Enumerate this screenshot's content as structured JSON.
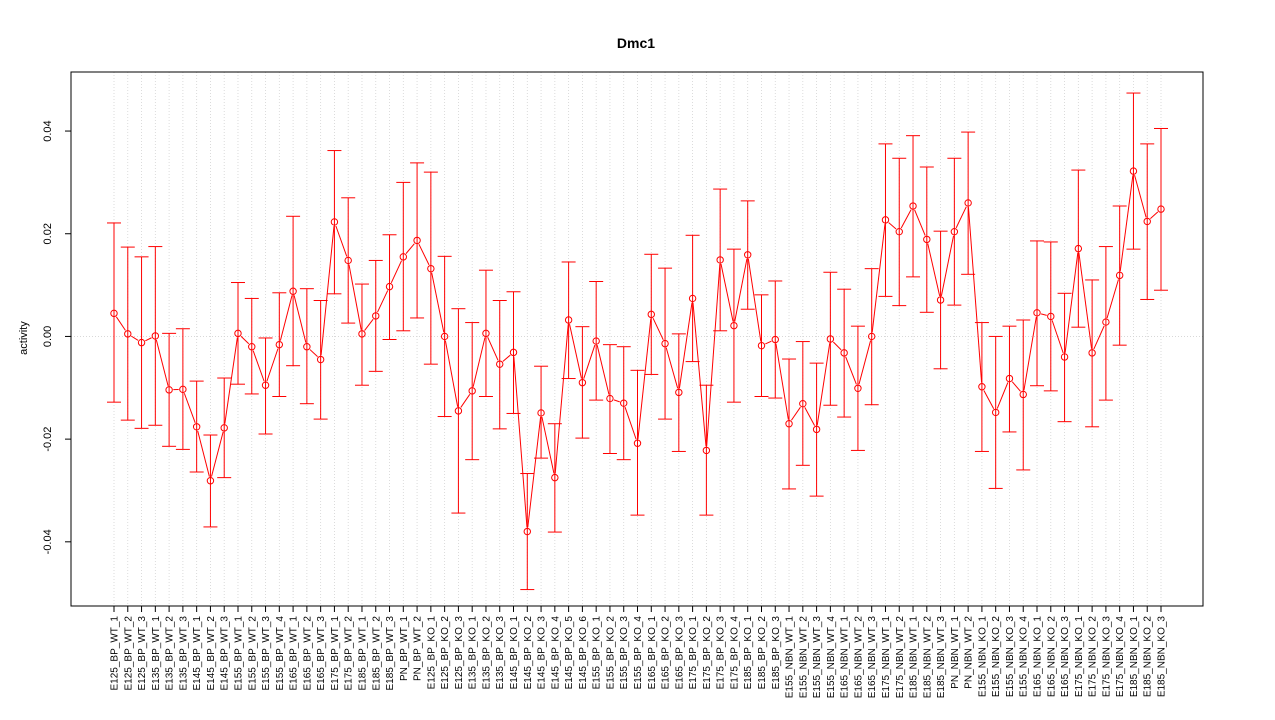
{
  "chart_data": {
    "type": "line",
    "title": "Dmc1",
    "xlabel": "",
    "ylabel": "activity",
    "ylim": [
      -0.0525,
      0.0515
    ],
    "yticks": [
      -0.04,
      -0.02,
      0.0,
      0.02,
      0.04
    ],
    "ytick_labels": [
      "-0.04",
      "-0.02",
      "0.00",
      "0.02",
      "0.04"
    ],
    "grid": true,
    "error_bars": true,
    "color": "#ff0000",
    "grid_color": "#d3d3d3",
    "categories": [
      "E125_BP_WT_1",
      "E125_BP_WT_2",
      "E125_BP_WT_3",
      "E135_BP_WT_1",
      "E135_BP_WT_2",
      "E135_BP_WT_3",
      "E145_BP_WT_1",
      "E145_BP_WT_2",
      "E145_BP_WT_3",
      "E155_BP_WT_1",
      "E155_BP_WT_2",
      "E155_BP_WT_3",
      "E155_BP_WT_4",
      "E165_BP_WT_1",
      "E165_BP_WT_2",
      "E165_BP_WT_3",
      "E175_BP_WT_1",
      "E175_BP_WT_2",
      "E185_BP_WT_1",
      "E185_BP_WT_2",
      "E185_BP_WT_3",
      "PN_BP_WT_1",
      "PN_BP_WT_2",
      "E125_BP_KO_1",
      "E125_BP_KO_2",
      "E125_BP_KO_3",
      "E135_BP_KO_1",
      "E135_BP_KO_2",
      "E135_BP_KO_3",
      "E145_BP_KO_1",
      "E145_BP_KO_2",
      "E145_BP_KO_3",
      "E145_BP_KO_4",
      "E145_BP_KO_5",
      "E145_BP_KO_6",
      "E155_BP_KO_1",
      "E155_BP_KO_2",
      "E155_BP_KO_3",
      "E155_BP_KO_4",
      "E165_BP_KO_1",
      "E165_BP_KO_2",
      "E165_BP_KO_3",
      "E175_BP_KO_1",
      "E175_BP_KO_2",
      "E175_BP_KO_3",
      "E175_BP_KO_4",
      "E185_BP_KO_1",
      "E185_BP_KO_2",
      "E185_BP_KO_3",
      "E155_NBN_WT_1",
      "E155_NBN_WT_2",
      "E155_NBN_WT_3",
      "E155_NBN_WT_4",
      "E165_NBN_WT_1",
      "E165_NBN_WT_2",
      "E165_NBN_WT_3",
      "E175_NBN_WT_1",
      "E175_NBN_WT_2",
      "E185_NBN_WT_1",
      "E185_NBN_WT_2",
      "E185_NBN_WT_3",
      "PN_NBN_WT_1",
      "PN_NBN_WT_2",
      "E155_NBN_KO_1",
      "E155_NBN_KO_2",
      "E155_NBN_KO_3",
      "E155_NBN_KO_4",
      "E165_NBN_KO_1",
      "E165_NBN_KO_2",
      "E165_NBN_KO_3",
      "E175_NBN_KO_1",
      "E175_NBN_KO_2",
      "E175_NBN_KO_3",
      "E175_NBN_KO_4",
      "E185_NBN_KO_1",
      "E185_NBN_KO_2",
      "E185_NBN_KO_3"
    ],
    "values": [
      0.0045,
      0.0005,
      -0.0012,
      0.0001,
      -0.0104,
      -0.0103,
      -0.0176,
      -0.0281,
      -0.0178,
      0.0006,
      -0.002,
      -0.0095,
      -0.0016,
      0.0088,
      -0.002,
      -0.0045,
      0.0223,
      0.0148,
      0.0005,
      0.004,
      0.0097,
      0.0155,
      0.0187,
      0.0132,
      0.0,
      -0.0145,
      -0.0106,
      0.0006,
      -0.0054,
      -0.0031,
      -0.038,
      -0.0149,
      -0.0275,
      0.0032,
      -0.009,
      -0.0009,
      -0.0121,
      -0.013,
      -0.0208,
      0.0043,
      -0.0014,
      -0.0109,
      0.0074,
      -0.0222,
      0.0149,
      0.0021,
      0.0159,
      -0.0018,
      -0.0006,
      -0.017,
      -0.0131,
      -0.0181,
      -0.0005,
      -0.0032,
      -0.0101,
      0.0,
      0.0227,
      0.0204,
      0.0254,
      0.0189,
      0.0071,
      0.0204,
      0.026,
      -0.0098,
      -0.0148,
      -0.0082,
      -0.0113,
      0.0046,
      0.0039,
      -0.004,
      0.0171,
      -0.0032,
      0.0028,
      0.0119,
      0.0322,
      0.0224,
      0.0248
    ],
    "upper": [
      0.0221,
      0.0174,
      0.0155,
      0.0175,
      0.0006,
      0.0015,
      -0.0087,
      -0.0192,
      -0.0081,
      0.0105,
      0.0074,
      -0.0003,
      0.0085,
      0.0234,
      0.0093,
      0.007,
      0.0362,
      0.027,
      0.0102,
      0.0148,
      0.0198,
      0.03,
      0.0338,
      0.032,
      0.0156,
      0.0054,
      0.0027,
      0.0129,
      0.007,
      0.0087,
      -0.0267,
      -0.0058,
      -0.017,
      0.0145,
      0.0019,
      0.0107,
      -0.0016,
      -0.002,
      -0.0066,
      0.016,
      0.0133,
      0.0005,
      0.0197,
      -0.0095,
      0.0287,
      0.017,
      0.0264,
      0.0081,
      0.0108,
      -0.0044,
      -0.001,
      -0.0052,
      0.0125,
      0.0092,
      0.002,
      0.0132,
      0.0375,
      0.0347,
      0.0391,
      0.033,
      0.0205,
      0.0347,
      0.0398,
      0.0027,
      0.0,
      0.002,
      0.0032,
      0.0186,
      0.0184,
      0.0084,
      0.0324,
      0.011,
      0.0175,
      0.0254,
      0.0474,
      0.0375,
      0.0405
    ],
    "lower": [
      -0.0128,
      -0.0163,
      -0.0179,
      -0.0173,
      -0.0214,
      -0.022,
      -0.0264,
      -0.0371,
      -0.0275,
      -0.0093,
      -0.0112,
      -0.019,
      -0.0117,
      -0.0057,
      -0.0131,
      -0.0161,
      0.0083,
      0.0026,
      -0.0095,
      -0.0068,
      -0.0006,
      0.0011,
      0.0036,
      -0.0054,
      -0.0156,
      -0.0344,
      -0.024,
      -0.0117,
      -0.018,
      -0.015,
      -0.0493,
      -0.0237,
      -0.0381,
      -0.0082,
      -0.0198,
      -0.0124,
      -0.0228,
      -0.024,
      -0.0348,
      -0.0074,
      -0.0161,
      -0.0224,
      -0.0049,
      -0.0348,
      0.0011,
      -0.0128,
      0.0053,
      -0.0117,
      -0.012,
      -0.0297,
      -0.0251,
      -0.0311,
      -0.0134,
      -0.0157,
      -0.0222,
      -0.0133,
      0.0078,
      0.006,
      0.0116,
      0.0047,
      -0.0063,
      0.0061,
      0.0121,
      -0.0224,
      -0.0296,
      -0.0186,
      -0.026,
      -0.0096,
      -0.0106,
      -0.0166,
      0.0018,
      -0.0176,
      -0.0124,
      -0.0017,
      0.017,
      0.0072,
      0.009
    ]
  }
}
